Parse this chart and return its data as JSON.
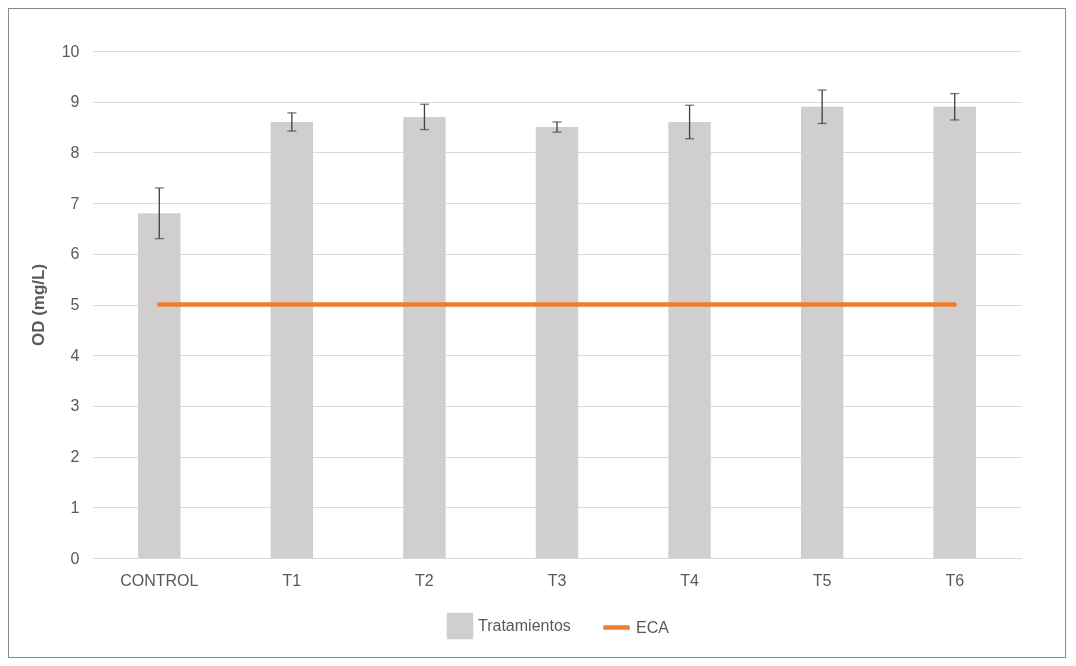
{
  "chart_data": {
    "type": "bar",
    "ylabel": "OD (mg/L)",
    "categories": [
      "CONTROL",
      "T1",
      "T2",
      "T3",
      "T4",
      "T5",
      "T6"
    ],
    "series": [
      {
        "name": "Tratamientos",
        "color": "#d0cece",
        "values": [
          6.8,
          8.6,
          8.7,
          8.5,
          8.6,
          8.9,
          8.9
        ],
        "errors": [
          0.5,
          0.18,
          0.25,
          0.1,
          0.33,
          0.33,
          0.26
        ]
      },
      {
        "name": "ECA",
        "type": "line",
        "color": "#ed7d31",
        "values": [
          5,
          5,
          5,
          5,
          5,
          5,
          5
        ]
      }
    ],
    "ylim": [
      0,
      10
    ],
    "yticks": [
      0,
      1,
      2,
      3,
      4,
      5,
      6,
      7,
      8,
      9,
      10
    ],
    "grid": "y",
    "legend": "bottom"
  }
}
